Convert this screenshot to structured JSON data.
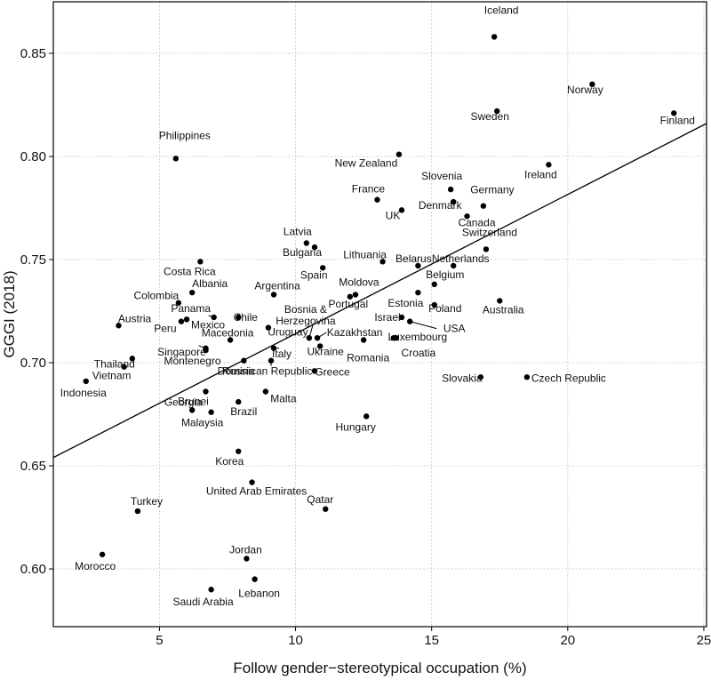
{
  "chart_data": {
    "type": "scatter",
    "xlabel": "Follow gender−stereotypical occupation (%)",
    "ylabel": "GGGI (2018)",
    "xlim": [
      1.1,
      25.1
    ],
    "ylim": [
      0.572,
      0.875
    ],
    "xticks": [
      5,
      10,
      15,
      20,
      25
    ],
    "yticks": [
      0.6,
      0.65,
      0.7,
      0.75,
      0.8,
      0.85
    ],
    "xtick_labels": [
      "5",
      "10",
      "15",
      "20",
      "25"
    ],
    "ytick_labels": [
      "0.60",
      "0.65",
      "0.70",
      "0.75",
      "0.80",
      "0.85"
    ],
    "grid": true,
    "fit_line": {
      "x": [
        1.1,
        25.1
      ],
      "y": [
        0.654,
        0.816
      ]
    },
    "points": [
      {
        "label": "Iceland",
        "x": 17.3,
        "y": 0.858
      },
      {
        "label": "Norway",
        "x": 20.9,
        "y": 0.835
      },
      {
        "label": "Sweden",
        "x": 17.4,
        "y": 0.822
      },
      {
        "label": "Finland",
        "x": 23.9,
        "y": 0.821
      },
      {
        "label": "Philippines",
        "x": 5.6,
        "y": 0.799
      },
      {
        "label": "New Zealand",
        "x": 13.8,
        "y": 0.801
      },
      {
        "label": "Ireland",
        "x": 19.3,
        "y": 0.796
      },
      {
        "label": "Slovenia",
        "x": 15.7,
        "y": 0.784
      },
      {
        "label": "France",
        "x": 13.0,
        "y": 0.779
      },
      {
        "label": "Germany",
        "x": 16.9,
        "y": 0.776
      },
      {
        "label": "Denmark",
        "x": 15.8,
        "y": 0.778
      },
      {
        "label": "UK",
        "x": 13.9,
        "y": 0.774
      },
      {
        "label": "Canada",
        "x": 16.3,
        "y": 0.771
      },
      {
        "label": "Latvia",
        "x": 10.4,
        "y": 0.758
      },
      {
        "label": "Bulgaria",
        "x": 10.7,
        "y": 0.756
      },
      {
        "label": "Switzerland",
        "x": 17.0,
        "y": 0.755
      },
      {
        "label": "Costa Rica",
        "x": 6.5,
        "y": 0.749
      },
      {
        "label": "Lithuania",
        "x": 13.2,
        "y": 0.749
      },
      {
        "label": "Belarus",
        "x": 14.5,
        "y": 0.747
      },
      {
        "label": "Netherlands",
        "x": 15.8,
        "y": 0.747
      },
      {
        "label": "Spain",
        "x": 11.0,
        "y": 0.746
      },
      {
        "label": "Belgium",
        "x": 15.1,
        "y": 0.738
      },
      {
        "label": "Albania",
        "x": 6.2,
        "y": 0.734
      },
      {
        "label": "Estonia",
        "x": 14.5,
        "y": 0.734
      },
      {
        "label": "Argentina",
        "x": 9.2,
        "y": 0.733
      },
      {
        "label": "Moldova",
        "x": 12.2,
        "y": 0.733
      },
      {
        "label": "Portugal",
        "x": 12.0,
        "y": 0.732
      },
      {
        "label": "Australia",
        "x": 17.5,
        "y": 0.73
      },
      {
        "label": "Colombia",
        "x": 5.7,
        "y": 0.729
      },
      {
        "label": "Poland",
        "x": 15.1,
        "y": 0.728
      },
      {
        "label": "Panama",
        "x": 7.0,
        "y": 0.722
      },
      {
        "label": "Chile",
        "x": 7.9,
        "y": 0.722
      },
      {
        "label": "Israel",
        "x": 13.9,
        "y": 0.722
      },
      {
        "label": "USA",
        "x": 14.2,
        "y": 0.72
      },
      {
        "label": "Peru",
        "x": 5.8,
        "y": 0.72
      },
      {
        "label": "Mexico",
        "x": 6.0,
        "y": 0.721
      },
      {
        "label": "Austria",
        "x": 3.5,
        "y": 0.718
      },
      {
        "label": "Bosnia & Herzegovina",
        "x": 10.5,
        "y": 0.712
      },
      {
        "label": "Uruguay",
        "x": 9.0,
        "y": 0.717
      },
      {
        "label": "Kazakhstan",
        "x": 10.8,
        "y": 0.712
      },
      {
        "label": "Luxembourg",
        "x": 13.6,
        "y": 0.712
      },
      {
        "label": "Croatia",
        "x": 13.7,
        "y": 0.712
      },
      {
        "label": "Romania",
        "x": 12.5,
        "y": 0.711
      },
      {
        "label": "Ukraine",
        "x": 10.9,
        "y": 0.708
      },
      {
        "label": "Macedonia",
        "x": 7.6,
        "y": 0.711
      },
      {
        "label": "Singapore",
        "x": 6.7,
        "y": 0.707
      },
      {
        "label": "Montenegro",
        "x": 6.7,
        "y": 0.706
      },
      {
        "label": "Thailand",
        "x": 4.0,
        "y": 0.702
      },
      {
        "label": "Russia",
        "x": 8.1,
        "y": 0.701
      },
      {
        "label": "Italy",
        "x": 9.2,
        "y": 0.707
      },
      {
        "label": "Vietnam",
        "x": 3.7,
        "y": 0.698
      },
      {
        "label": "Greece",
        "x": 10.7,
        "y": 0.696
      },
      {
        "label": "Indonesia",
        "x": 2.3,
        "y": 0.691
      },
      {
        "label": "Slovakia",
        "x": 16.8,
        "y": 0.693
      },
      {
        "label": "Czech Republic",
        "x": 18.5,
        "y": 0.693
      },
      {
        "label": "Dominican Republic",
        "x": 9.1,
        "y": 0.701
      },
      {
        "label": "Brunei",
        "x": 6.7,
        "y": 0.686
      },
      {
        "label": "Malta",
        "x": 8.9,
        "y": 0.686
      },
      {
        "label": "Brazil",
        "x": 7.9,
        "y": 0.681
      },
      {
        "label": "Georgia",
        "x": 6.2,
        "y": 0.677
      },
      {
        "label": "Malaysia",
        "x": 6.9,
        "y": 0.676
      },
      {
        "label": "Hungary",
        "x": 12.6,
        "y": 0.674
      },
      {
        "label": "Korea",
        "x": 7.9,
        "y": 0.657
      },
      {
        "label": "United Arab Emirates",
        "x": 8.4,
        "y": 0.642
      },
      {
        "label": "Qatar",
        "x": 11.1,
        "y": 0.629
      },
      {
        "label": "Turkey",
        "x": 4.2,
        "y": 0.628
      },
      {
        "label": "Morocco",
        "x": 2.9,
        "y": 0.607
      },
      {
        "label": "Jordan",
        "x": 8.2,
        "y": 0.605
      },
      {
        "label": "Lebanon",
        "x": 8.5,
        "y": 0.595
      },
      {
        "label": "Saudi Arabia",
        "x": 6.9,
        "y": 0.59
      }
    ]
  }
}
